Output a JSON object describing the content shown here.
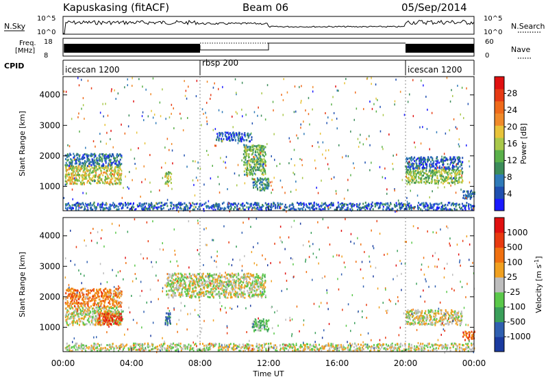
{
  "header": {
    "station": "Kapuskasing (fitACF)",
    "beam": "Beam 06",
    "date": "05/Sep/2014"
  },
  "top_panels": {
    "nsky_label": "N.Sky",
    "nsearch_label": "N.Search",
    "nsky_ticks": [
      "10^5",
      "10^0"
    ],
    "nsky_right_ticks": [
      "10^5",
      "10^0"
    ],
    "freq_label": "Freq.",
    "freq_unit": "[MHz]",
    "freq_ticks": [
      "18",
      "8"
    ],
    "nave_label": "Nave",
    "nave_ticks": [
      "60",
      "0"
    ],
    "cpid_label": "CPID",
    "cpid_segments": [
      {
        "name": "icescan 1200",
        "start_hour": 0,
        "end_hour": 8
      },
      {
        "name": "rbsp 200",
        "start_hour": 8,
        "end_hour": 20
      },
      {
        "name": "icescan 1200",
        "start_hour": 20,
        "end_hour": 24
      }
    ]
  },
  "chart_data": [
    {
      "type": "heatmap",
      "title": "",
      "xlabel": "Time UT",
      "ylabel": "Slant Range [km]",
      "xlim": [
        0,
        24
      ],
      "ylim": [
        200,
        4600
      ],
      "x_ticks": [
        "00:00",
        "04:00",
        "08:00",
        "12:00",
        "16:00",
        "20:00",
        "00:00"
      ],
      "y_ticks": [
        "1000",
        "2000",
        "3000",
        "4000"
      ],
      "colorbar": {
        "label": "Power [dB]",
        "ticks": [
          "4",
          "8",
          "12",
          "16",
          "20",
          "24",
          "28"
        ],
        "colors": [
          "#1a1aff",
          "#1f4fb0",
          "#2f7ab8",
          "#3c8c5a",
          "#5ab04a",
          "#a9c84a",
          "#e8c33a",
          "#f08a2a",
          "#ef6a1a",
          "#e63a14",
          "#e01010"
        ]
      },
      "regions": [
        {
          "x0": 0.1,
          "x1": 3.4,
          "y0": 1100,
          "y1": 1700,
          "level": 0.55
        },
        {
          "x0": 0.1,
          "x1": 3.4,
          "y0": 1700,
          "y1": 2100,
          "level": 0.2
        },
        {
          "x0": 5.9,
          "x1": 6.3,
          "y0": 1100,
          "y1": 1500,
          "level": 0.45
        },
        {
          "x0": 8.9,
          "x1": 11.0,
          "y0": 2500,
          "y1": 2800,
          "level": 0.12
        },
        {
          "x0": 10.5,
          "x1": 11.8,
          "y0": 1400,
          "y1": 2400,
          "level": 0.4
        },
        {
          "x0": 11.0,
          "x1": 12.0,
          "y0": 900,
          "y1": 1300,
          "level": 0.3
        },
        {
          "x0": 20.0,
          "x1": 23.3,
          "y0": 1100,
          "y1": 1600,
          "level": 0.45
        },
        {
          "x0": 20.0,
          "x1": 23.3,
          "y0": 1600,
          "y1": 2000,
          "level": 0.15
        },
        {
          "x0": 23.3,
          "x1": 24.0,
          "y0": 600,
          "y1": 900,
          "level": 0.2
        },
        {
          "x0": 0.1,
          "x1": 24.0,
          "y0": 250,
          "y1": 500,
          "level": 0.15
        }
      ]
    },
    {
      "type": "heatmap",
      "title": "",
      "xlabel": "Time UT",
      "ylabel": "Slant Range [km]",
      "xlim": [
        0,
        24
      ],
      "ylim": [
        200,
        4600
      ],
      "x_ticks": [
        "00:00",
        "04:00",
        "08:00",
        "12:00",
        "16:00",
        "20:00",
        "00:00"
      ],
      "y_ticks": [
        "1000",
        "2000",
        "3000",
        "4000"
      ],
      "colorbar": {
        "label": "Velocity [m s^-1]",
        "ticks": [
          "1000",
          "500",
          "100",
          "25",
          "-25",
          "-100",
          "-500",
          "-1000"
        ],
        "colors": [
          "#1a3a9f",
          "#2f5fb0",
          "#3a9f5a",
          "#5ac84a",
          "#bdbdbd",
          "#f0a020",
          "#f07010",
          "#e83a10",
          "#e01010"
        ]
      },
      "regions": [
        {
          "x0": 0.1,
          "x1": 3.4,
          "y0": 1100,
          "y1": 1700,
          "level": 0.5
        },
        {
          "x0": 2.0,
          "x1": 3.4,
          "y0": 1100,
          "y1": 1500,
          "level": 0.85
        },
        {
          "x0": 0.1,
          "x1": 3.4,
          "y0": 1700,
          "y1": 2300,
          "level": 0.7
        },
        {
          "x0": 5.9,
          "x1": 6.3,
          "y0": 1100,
          "y1": 1500,
          "level": 0.1
        },
        {
          "x0": 6.0,
          "x1": 11.8,
          "y0": 2000,
          "y1": 2800,
          "level": 0.5
        },
        {
          "x0": 11.0,
          "x1": 12.0,
          "y0": 900,
          "y1": 1300,
          "level": 0.35
        },
        {
          "x0": 20.0,
          "x1": 23.3,
          "y0": 1100,
          "y1": 1600,
          "level": 0.5
        },
        {
          "x0": 23.3,
          "x1": 24.0,
          "y0": 600,
          "y1": 900,
          "level": 0.8
        },
        {
          "x0": 0.1,
          "x1": 24.0,
          "y0": 250,
          "y1": 500,
          "level": 0.5
        }
      ]
    }
  ]
}
